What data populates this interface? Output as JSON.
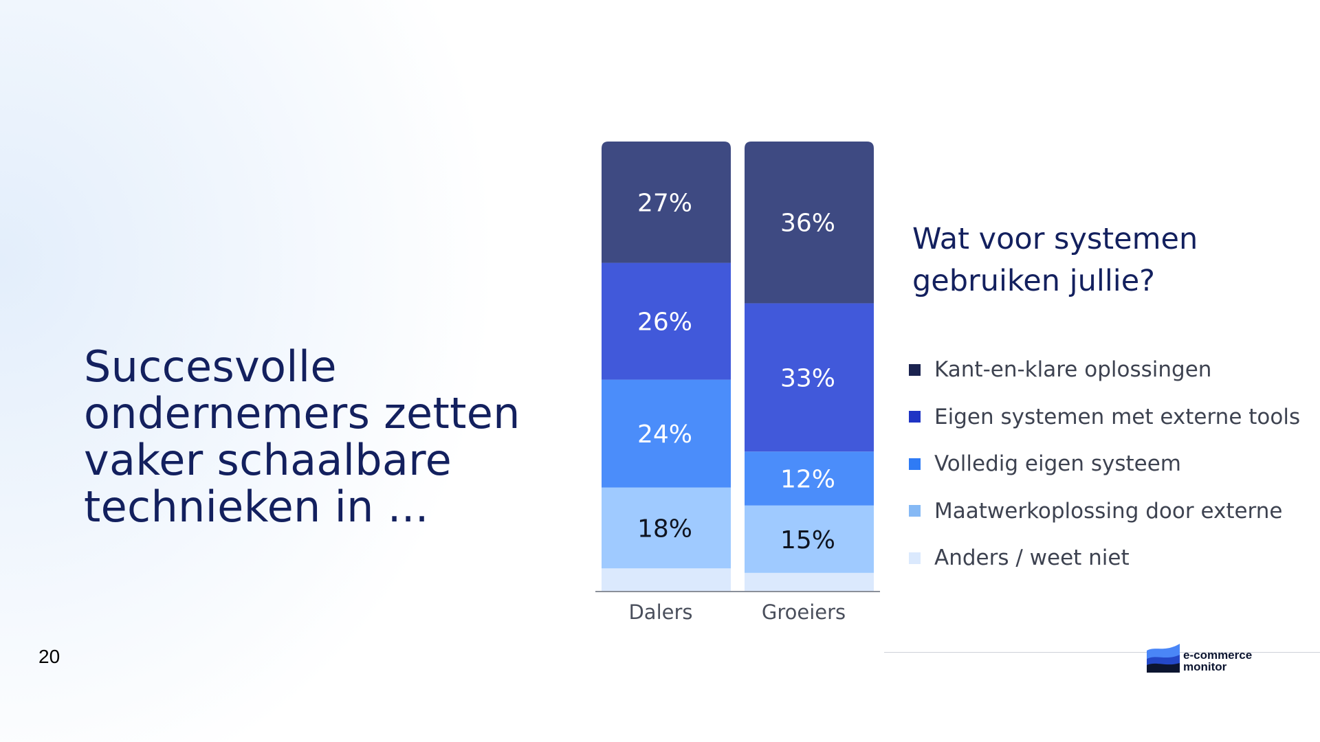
{
  "slide": {
    "headline_lines": [
      "Succesvolle",
      "ondernemers zetten",
      "vaker schaalbare",
      "technieken in ..."
    ],
    "page_number": "20"
  },
  "logo": {
    "text_line1": "e-commerce",
    "text_line2": "monitor"
  },
  "chart_data": {
    "type": "bar",
    "stacked": true,
    "title_lines": [
      "Wat voor systemen",
      "gebruiken jullie?"
    ],
    "categories": [
      "Dalers",
      "Groeiers"
    ],
    "series": [
      {
        "name": "Kant-en-klare oplossingen",
        "values": [
          27,
          36
        ],
        "color": "#3e4a82",
        "legend_color": "#1b2350",
        "label_color": "#ffffff"
      },
      {
        "name": "Eigen systemen met externe tools",
        "values": [
          26,
          33
        ],
        "color": "#4159da",
        "legend_color": "#1f34c4",
        "label_color": "#ffffff"
      },
      {
        "name": "Volledig eigen systeem",
        "values": [
          24,
          12
        ],
        "color": "#4b8dfa",
        "legend_color": "#2f7bf5",
        "label_color": "#ffffff"
      },
      {
        "name": "Maatwerkoplossing door externe",
        "values": [
          18,
          15
        ],
        "color": "#9fcaff",
        "legend_color": "#86b9f5",
        "label_color": "#0f1420"
      },
      {
        "name": "Anders / weet niet",
        "values": [
          5,
          4
        ],
        "color": "#dbe9fd",
        "legend_color": "#dbe9fd",
        "label_color": "#0f1420",
        "show_label": false
      }
    ],
    "value_suffix": "%",
    "ylim": [
      0,
      100
    ],
    "legend_position": "right"
  }
}
